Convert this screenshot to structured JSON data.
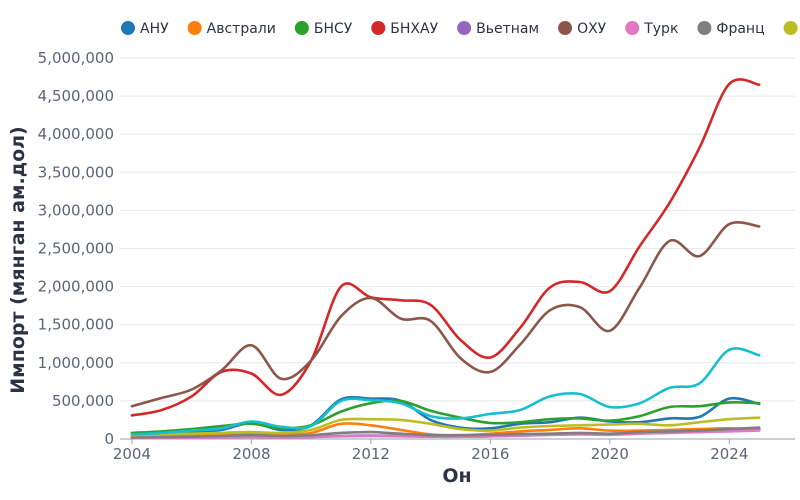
{
  "chart_data": {
    "type": "line",
    "xlabel": "Он",
    "ylabel": "Импорт (мянган ам.дол)",
    "xlim": [
      2003.6,
      2026.2
    ],
    "ylim": [
      0,
      5000000
    ],
    "x_ticks": [
      "2004",
      "2008",
      "2012",
      "2016",
      "2020",
      "2024"
    ],
    "y_ticks": [
      "0",
      "500,000",
      "1,000,000",
      "1,500,000",
      "2,000,000",
      "2,500,000",
      "3,000,000",
      "3,500,000",
      "4,000,000",
      "4,500,000",
      "5,000,000"
    ],
    "grid": true,
    "legend_position": "top",
    "x": [
      2004,
      2005,
      2006,
      2007,
      2008,
      2009,
      2010,
      2011,
      2012,
      2013,
      2014,
      2015,
      2016,
      2017,
      2018,
      2019,
      2020,
      2021,
      2022,
      2023,
      2024,
      2025
    ],
    "series": [
      {
        "name": "АНУ",
        "color": "#1f77b4",
        "values": [
          60000,
          70000,
          90000,
          120000,
          210000,
          120000,
          180000,
          520000,
          530000,
          500000,
          250000,
          150000,
          140000,
          200000,
          220000,
          280000,
          230000,
          220000,
          270000,
          290000,
          530000,
          460000
        ]
      },
      {
        "name": "Австрали",
        "color": "#ff7f0e",
        "values": [
          30000,
          40000,
          50000,
          60000,
          70000,
          60000,
          80000,
          200000,
          180000,
          120000,
          60000,
          50000,
          70000,
          100000,
          120000,
          140000,
          110000,
          110000,
          120000,
          130000,
          140000,
          130000
        ]
      },
      {
        "name": "БНСУ",
        "color": "#2ca02c",
        "values": [
          80000,
          100000,
          130000,
          170000,
          200000,
          140000,
          180000,
          360000,
          470000,
          500000,
          370000,
          280000,
          210000,
          220000,
          260000,
          270000,
          240000,
          300000,
          420000,
          430000,
          480000,
          470000
        ]
      },
      {
        "name": "БНХАУ",
        "color": "#d62728",
        "values": [
          310000,
          380000,
          560000,
          880000,
          860000,
          580000,
          1030000,
          2000000,
          1860000,
          1820000,
          1760000,
          1300000,
          1070000,
          1460000,
          1990000,
          2060000,
          1940000,
          2530000,
          3100000,
          3820000,
          4660000,
          4650000
        ]
      },
      {
        "name": "Вьетнам",
        "color": "#9467bd",
        "values": [
          10000,
          15000,
          20000,
          25000,
          30000,
          25000,
          30000,
          40000,
          45000,
          40000,
          35000,
          30000,
          35000,
          45000,
          55000,
          65000,
          60000,
          80000,
          100000,
          110000,
          120000,
          130000
        ]
      },
      {
        "name": "ОХУ",
        "color": "#8c564b",
        "values": [
          430000,
          540000,
          650000,
          900000,
          1230000,
          790000,
          1030000,
          1610000,
          1850000,
          1580000,
          1550000,
          1060000,
          880000,
          1240000,
          1690000,
          1730000,
          1420000,
          1990000,
          2600000,
          2400000,
          2820000,
          2790000
        ]
      },
      {
        "name": "Турк",
        "color": "#e377c2",
        "values": [
          10000,
          12000,
          15000,
          20000,
          25000,
          20000,
          25000,
          35000,
          40000,
          35000,
          30000,
          30000,
          35000,
          45000,
          55000,
          60000,
          55000,
          70000,
          80000,
          90000,
          100000,
          110000
        ]
      },
      {
        "name": "Франц",
        "color": "#7f7f7f",
        "values": [
          20000,
          25000,
          30000,
          40000,
          50000,
          40000,
          50000,
          80000,
          90000,
          70000,
          50000,
          50000,
          55000,
          65000,
          70000,
          80000,
          70000,
          90000,
          100000,
          110000,
          130000,
          150000
        ]
      },
      {
        "name": "",
        "color": "#bcbd22",
        "values": [
          50000,
          60000,
          70000,
          80000,
          90000,
          80000,
          120000,
          250000,
          260000,
          250000,
          200000,
          130000,
          110000,
          150000,
          170000,
          180000,
          190000,
          200000,
          180000,
          220000,
          260000,
          280000
        ]
      },
      {
        "name": "",
        "color": "#17becf",
        "values": [
          60000,
          80000,
          110000,
          140000,
          230000,
          160000,
          170000,
          500000,
          510000,
          470000,
          300000,
          270000,
          330000,
          380000,
          560000,
          590000,
          420000,
          470000,
          670000,
          730000,
          1170000,
          1100000
        ]
      }
    ]
  }
}
